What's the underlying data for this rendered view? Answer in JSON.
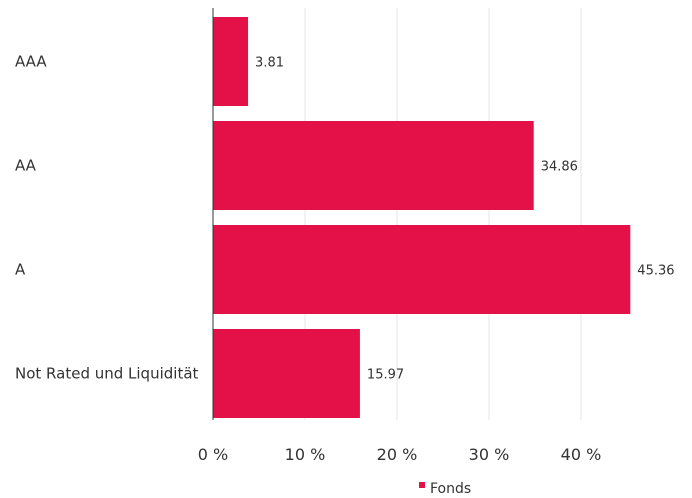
{
  "chart_data": {
    "type": "bar",
    "orientation": "horizontal",
    "categories": [
      "AAA",
      "AA",
      "A",
      "Not Rated und Liquidität"
    ],
    "series": [
      {
        "name": "Fonds",
        "values": [
          3.81,
          34.86,
          45.36,
          15.97
        ],
        "data_labels": [
          "3.81",
          "34.86",
          "45.36",
          "15.97"
        ]
      }
    ],
    "x_ticks": [
      0,
      10,
      20,
      30,
      40
    ],
    "x_tick_labels": [
      "0 %",
      "10 %",
      "20 %",
      "30 %",
      "40 %"
    ],
    "xlim": [
      0,
      46
    ],
    "grid": true,
    "legend_position": "bottom",
    "colors": {
      "bar": "#e31148",
      "grid": "#e6e6e6",
      "axis": "#333333"
    }
  }
}
